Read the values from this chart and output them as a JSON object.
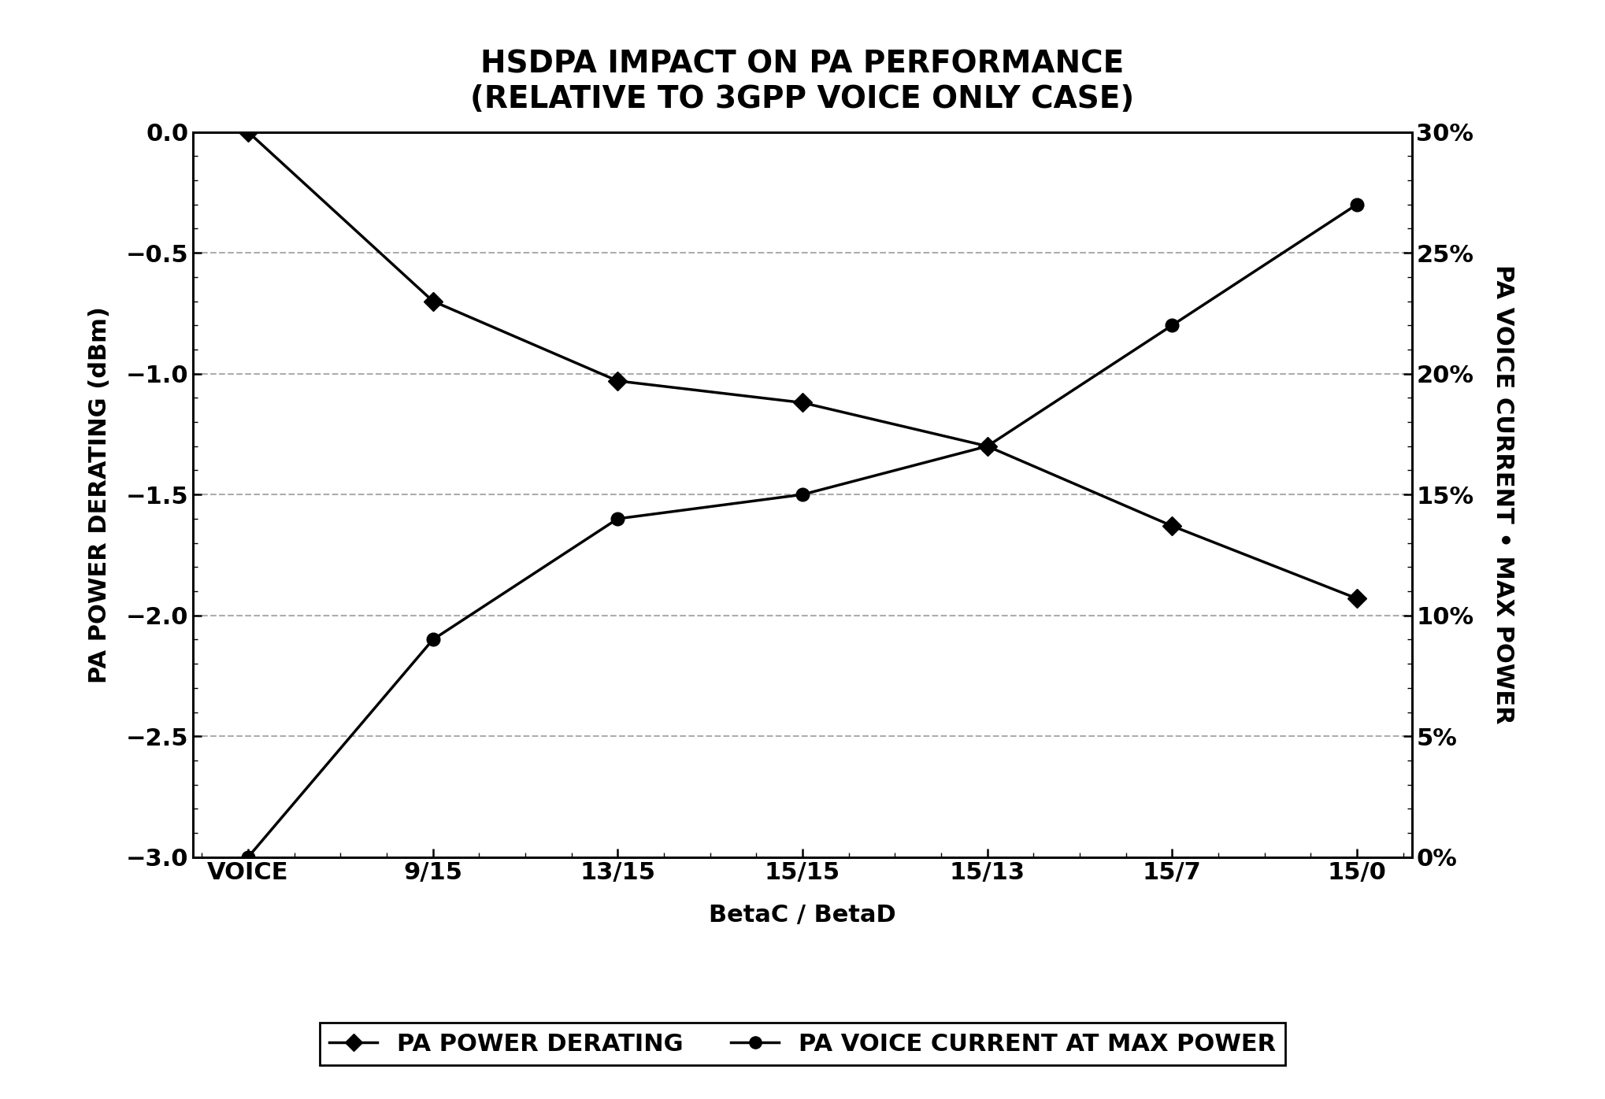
{
  "title_line1": "HSDPA IMPACT ON PA PERFORMANCE",
  "title_line2": "(RELATIVE TO 3GPP VOICE ONLY CASE)",
  "xlabel": "BetaC / BetaD",
  "ylabel_left": "PA POWER DERATING (dBm)",
  "ylabel_right": "PA VOICE CURRENT • MAX POWER",
  "x_labels": [
    "VOICE",
    "9/15",
    "13/15",
    "15/15",
    "15/13",
    "15/7",
    "15/0"
  ],
  "pa_power_derating": [
    0.0,
    -0.7,
    -1.03,
    -1.12,
    -1.3,
    -1.63,
    -1.93
  ],
  "pa_voice_current_pct": [
    0.0,
    9.0,
    14.0,
    15.0,
    17.0,
    22.0,
    27.0
  ],
  "left_ylim": [
    -3.0,
    0.0
  ],
  "left_yticks": [
    0.0,
    -0.5,
    -1.0,
    -1.5,
    -2.0,
    -2.5,
    -3.0
  ],
  "left_ytick_labels": [
    "0.0",
    "−0.5",
    "−1.0",
    "−1.5",
    "−2.0",
    "−2.5",
    "−3.0"
  ],
  "right_ylim": [
    0,
    30
  ],
  "right_yticks": [
    30,
    25,
    20,
    15,
    10,
    5,
    0
  ],
  "right_ytick_labels": [
    "30%",
    "25%",
    "20%",
    "15%",
    "10%",
    "5%",
    "0%"
  ],
  "line_color": "#000000",
  "background_color": "#ffffff",
  "grid_color": "#999999",
  "title_fontsize": 28,
  "axis_label_fontsize": 22,
  "tick_fontsize": 22,
  "legend_fontsize": 22,
  "legend_label1": "PA POWER DERATING",
  "legend_label2": "PA VOICE CURRENT AT MAX POWER"
}
